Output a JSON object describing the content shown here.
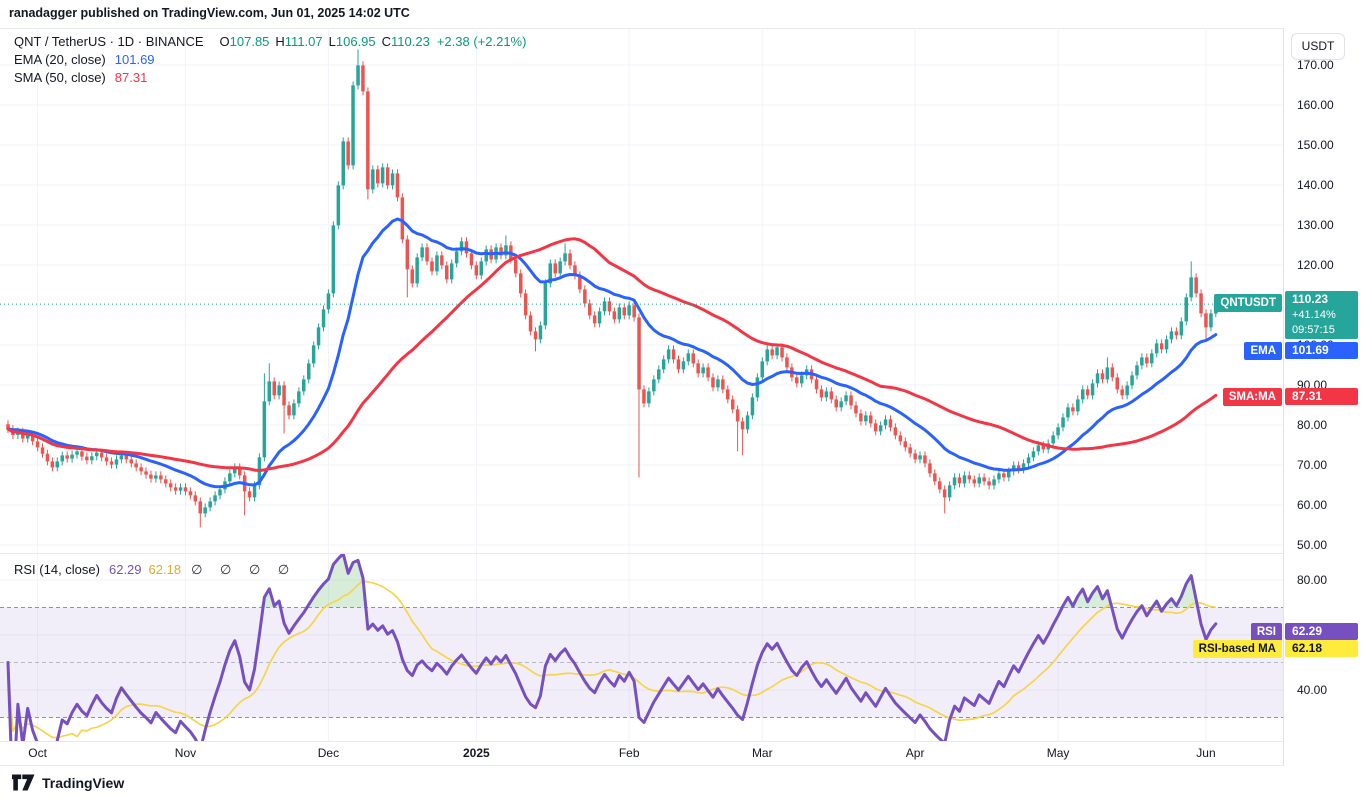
{
  "topbar": {
    "attribution": "ranadagger published on TradingView.com, Jun 01, 2025 14:02 UTC"
  },
  "legend": {
    "title": "QNT / TetherUS · 1D · BINANCE",
    "ohlc": [
      {
        "k": "O",
        "v": "107.85"
      },
      {
        "k": "H",
        "v": "111.07"
      },
      {
        "k": "L",
        "v": "106.95"
      },
      {
        "k": "C",
        "v": "110.23"
      }
    ],
    "change": "+2.38 (+2.21%)",
    "ema": {
      "label": "EMA (20, close)",
      "value": "101.69"
    },
    "sma": {
      "label": "SMA (50, close)",
      "value": "87.31"
    },
    "rsi": {
      "label": "RSI (14, close)",
      "value": "62.29",
      "ma_value": "62.18",
      "empty": "∅ ∅ ∅ ∅"
    }
  },
  "axis": {
    "unit_button": "USDT"
  },
  "badges": {
    "symbol": {
      "name": "QNTUSDT",
      "price": "110.23",
      "change": "+41.14%",
      "countdown": "09:57:15"
    },
    "ema": {
      "name": "EMA",
      "value": "101.69"
    },
    "sma": {
      "name": "SMA:MA",
      "value": "87.31"
    },
    "rsi": {
      "name": "RSI",
      "value": "62.29"
    },
    "rsi_ma": {
      "name": "RSI-based MA",
      "value": "62.18"
    }
  },
  "footer": {
    "brand": "TradingView"
  },
  "chart_data": {
    "type": "candlestick",
    "title": "QNT / TetherUS · 1D · BINANCE",
    "symbol": "QNT/USDT",
    "interval": "1D",
    "exchange": "BINANCE",
    "legend_position": "top-left",
    "grid": true,
    "colors": {
      "up": "#26a69a",
      "down": "#ef5350",
      "ema": "#2962ff",
      "sma": "#f23645",
      "rsi": "#7650c0",
      "rsi_ma": "#f6d44c",
      "grid": "#f0f3fa",
      "band_line": "#8f939e",
      "mid_line": "#b6bac3",
      "band_fill": "rgba(123,90,196,0.10)",
      "over_fill": "rgba(76,175,80,0.22)",
      "price_line": "#26a69a",
      "badge_yellow": "#ffeb3b",
      "text": "#131722"
    },
    "price_axis": {
      "ticks": [
        170,
        160,
        150,
        140,
        130,
        120,
        110,
        100,
        90,
        80,
        70,
        60,
        50
      ],
      "ylim": [
        47.5,
        179.3
      ],
      "current_price": 110.23
    },
    "months": [
      {
        "label": "Oct",
        "i": 6
      },
      {
        "label": "Nov",
        "i": 36
      },
      {
        "label": "Dec",
        "i": 65
      },
      {
        "label": "2025",
        "i": 95,
        "strong": true
      },
      {
        "label": "Feb",
        "i": 126
      },
      {
        "label": "Mar",
        "i": 153
      },
      {
        "label": "Apr",
        "i": 184
      },
      {
        "label": "May",
        "i": 213
      },
      {
        "label": "Jun",
        "i": 243
      }
    ],
    "candles": {
      "note": "daily candles Sep 25 2024 - Jun 01 2025, values in USDT, estimated from pixels",
      "first_open": 80.2,
      "default_wick": 1.0,
      "closes": [
        79,
        77.5,
        78.3,
        76.6,
        77.4,
        75.9,
        74.4,
        72.8,
        70.9,
        69.4,
        70.9,
        72.4,
        71.6,
        72.6,
        73.4,
        72.1,
        71.2,
        72.2,
        73.1,
        71.9,
        70.9,
        70.1,
        71.4,
        72.4,
        71.4,
        70.4,
        69.4,
        68.4,
        67.6,
        66.6,
        67.4,
        66.4,
        65.4,
        64.4,
        63.6,
        64.4,
        63.4,
        62.4,
        60.9,
        57.9,
        59.4,
        60.9,
        62.4,
        63.9,
        65.9,
        67.9,
        69.4,
        67.4,
        63.4,
        61.9,
        64.9,
        71.9,
        85.9,
        90.9,
        87.4,
        89.9,
        84.9,
        82.4,
        85.4,
        88.4,
        91.4,
        95.4,
        99.9,
        104.4,
        108.9,
        112.9,
        129.9,
        139.9,
        150.9,
        144.9,
        164.9,
        169.9,
        163.4,
        138.9,
        143.9,
        140.4,
        144.4,
        139.9,
        142.9,
        136.9,
        126.4,
        118.9,
        115.4,
        121.9,
        124.4,
        120.9,
        118.4,
        122.4,
        119.9,
        116.4,
        120.4,
        123.4,
        125.9,
        122.9,
        119.9,
        117.4,
        120.9,
        123.9,
        121.4,
        124.4,
        122.4,
        124.9,
        121.4,
        117.9,
        112.9,
        107.4,
        103.4,
        101.4,
        104.9,
        115.4,
        120.4,
        117.9,
        120.9,
        122.9,
        119.9,
        117.4,
        113.9,
        110.4,
        107.4,
        105.4,
        108.4,
        110.9,
        108.4,
        106.4,
        109.4,
        107.4,
        109.9,
        106.9,
        88.9,
        85.4,
        88.4,
        91.4,
        93.9,
        96.4,
        98.9,
        96.4,
        93.9,
        95.9,
        97.9,
        95.4,
        92.9,
        94.4,
        91.9,
        89.4,
        91.4,
        88.9,
        86.4,
        83.9,
        80.9,
        78.9,
        82.4,
        86.9,
        91.9,
        95.9,
        98.9,
        97.4,
        99.4,
        96.9,
        94.4,
        91.9,
        90.4,
        92.4,
        93.9,
        91.4,
        88.9,
        86.9,
        88.4,
        86.4,
        84.4,
        85.9,
        87.4,
        84.9,
        82.9,
        80.9,
        82.4,
        80.4,
        78.4,
        79.9,
        81.4,
        79.4,
        77.4,
        75.9,
        74.4,
        72.9,
        71.4,
        72.4,
        70.4,
        67.9,
        65.9,
        63.9,
        61.9,
        64.9,
        66.9,
        65.4,
        67.4,
        66.4,
        65.4,
        66.9,
        65.9,
        64.9,
        66.4,
        67.9,
        66.9,
        68.4,
        69.9,
        68.9,
        70.4,
        71.9,
        73.4,
        74.9,
        73.9,
        75.4,
        77.4,
        79.4,
        81.9,
        84.4,
        83.4,
        86.4,
        88.9,
        87.4,
        90.4,
        92.9,
        91.4,
        94.4,
        91.9,
        88.9,
        87.4,
        89.9,
        92.4,
        94.9,
        96.9,
        95.4,
        97.9,
        100.4,
        98.9,
        101.4,
        103.4,
        102.4,
        105.9,
        111.9,
        116.9,
        112.9,
        107.9,
        104.4,
        107.9,
        110.23
      ],
      "wick_overrides": {
        "39": {
          "low": 54.4
        },
        "48": {
          "low": 57.4
        },
        "52": {
          "high": 92.9
        },
        "53": {
          "high": 95.4
        },
        "56": {
          "low": 77.9
        },
        "71": {
          "high": 173.9
        },
        "73": {
          "low": 136.4
        },
        "81": {
          "low": 111.9
        },
        "101": {
          "high": 127.4
        },
        "107": {
          "low": 98.4
        },
        "113": {
          "high": 125.4
        },
        "128": {
          "low": 66.9
        },
        "148": {
          "low": 73.4
        },
        "149": {
          "low": 72.4
        },
        "190": {
          "low": 57.9
        },
        "223": {
          "high": 96.9
        },
        "240": {
          "high": 120.9
        },
        "243": {
          "low": 100.9
        }
      },
      "last_ohlc": {
        "open": 107.85,
        "high": 111.07,
        "low": 106.95,
        "close": 110.23
      }
    },
    "indicators": [
      {
        "name": "EMA",
        "period": 20,
        "source": "close",
        "color": "#2962ff",
        "last": 101.69
      },
      {
        "name": "SMA",
        "period": 50,
        "source": "close",
        "color": "#f23645",
        "last": 87.31
      }
    ],
    "rsi_pane": {
      "period": 14,
      "source": "close",
      "color": "#7650c0",
      "last": 62.29,
      "ma": {
        "period": 14,
        "color": "#f6d44c",
        "last": 62.18
      },
      "levels": {
        "upper": 70,
        "middle": 50,
        "lower": 30
      },
      "ticks": [
        80,
        40
      ],
      "ylim": [
        21.5,
        89.5
      ]
    }
  }
}
